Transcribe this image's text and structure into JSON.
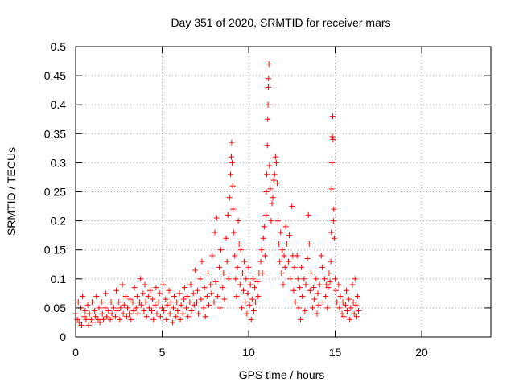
{
  "chart_data": {
    "type": "scatter",
    "title": "Day 351 of 2020, SRMTID for receiver mars",
    "xlabel": "GPS time / hours",
    "ylabel": "SRMTID / TECUs",
    "xlim": [
      0,
      24
    ],
    "ylim": [
      0,
      0.5
    ],
    "xticks": [
      0,
      5,
      10,
      15,
      20
    ],
    "xtick_labels": [
      "0",
      "5",
      "10",
      "15",
      "20"
    ],
    "yticks": [
      0,
      0.05,
      0.1,
      0.15,
      0.2,
      0.25,
      0.3,
      0.35,
      0.4,
      0.45,
      0.5
    ],
    "ytick_labels": [
      "0",
      "0.05",
      "0.1",
      "0.15",
      "0.2",
      "0.25",
      "0.3",
      "0.35",
      "0.4",
      "0.45",
      "0.5"
    ],
    "grid": true,
    "marker": "+",
    "color": "#ff0000",
    "series": [
      {
        "name": "SRMTID",
        "points": [
          [
            0.0,
            0.04
          ],
          [
            0.1,
            0.03
          ],
          [
            0.15,
            0.06
          ],
          [
            0.2,
            0.025
          ],
          [
            0.3,
            0.05
          ],
          [
            0.35,
            0.02
          ],
          [
            0.4,
            0.07
          ],
          [
            0.5,
            0.035
          ],
          [
            0.55,
            0.045
          ],
          [
            0.6,
            0.03
          ],
          [
            0.7,
            0.055
          ],
          [
            0.75,
            0.02
          ],
          [
            0.8,
            0.04
          ],
          [
            0.9,
            0.03
          ],
          [
            0.95,
            0.06
          ],
          [
            1.0,
            0.025
          ],
          [
            1.1,
            0.045
          ],
          [
            1.15,
            0.035
          ],
          [
            1.2,
            0.07
          ],
          [
            1.3,
            0.03
          ],
          [
            1.35,
            0.05
          ],
          [
            1.4,
            0.025
          ],
          [
            1.5,
            0.06
          ],
          [
            1.55,
            0.04
          ],
          [
            1.6,
            0.03
          ],
          [
            1.7,
            0.05
          ],
          [
            1.75,
            0.075
          ],
          [
            1.8,
            0.035
          ],
          [
            1.9,
            0.045
          ],
          [
            2.0,
            0.03
          ],
          [
            2.05,
            0.06
          ],
          [
            2.1,
            0.04
          ],
          [
            2.2,
            0.05
          ],
          [
            2.3,
            0.035
          ],
          [
            2.35,
            0.08
          ],
          [
            2.4,
            0.045
          ],
          [
            2.5,
            0.06
          ],
          [
            2.55,
            0.03
          ],
          [
            2.6,
            0.05
          ],
          [
            2.7,
            0.09
          ],
          [
            2.75,
            0.04
          ],
          [
            2.8,
            0.055
          ],
          [
            2.9,
            0.07
          ],
          [
            2.95,
            0.035
          ],
          [
            3.0,
            0.05
          ],
          [
            3.1,
            0.04
          ],
          [
            3.15,
            0.065
          ],
          [
            3.2,
            0.03
          ],
          [
            3.3,
            0.06
          ],
          [
            3.35,
            0.045
          ],
          [
            3.4,
            0.085
          ],
          [
            3.5,
            0.05
          ],
          [
            3.55,
            0.07
          ],
          [
            3.6,
            0.04
          ],
          [
            3.7,
            0.06
          ],
          [
            3.75,
            0.1
          ],
          [
            3.8,
            0.055
          ],
          [
            3.9,
            0.075
          ],
          [
            3.95,
            0.045
          ],
          [
            4.0,
            0.09
          ],
          [
            4.05,
            0.06
          ],
          [
            4.1,
            0.035
          ],
          [
            4.2,
            0.07
          ],
          [
            4.25,
            0.05
          ],
          [
            4.3,
            0.08
          ],
          [
            4.4,
            0.045
          ],
          [
            4.45,
            0.065
          ],
          [
            4.5,
            0.03
          ],
          [
            4.6,
            0.055
          ],
          [
            4.65,
            0.085
          ],
          [
            4.7,
            0.04
          ],
          [
            4.8,
            0.06
          ],
          [
            4.85,
            0.075
          ],
          [
            4.9,
            0.035
          ],
          [
            5.0,
            0.05
          ],
          [
            5.05,
            0.09
          ],
          [
            5.1,
            0.045
          ],
          [
            5.2,
            0.065
          ],
          [
            5.25,
            0.03
          ],
          [
            5.3,
            0.055
          ],
          [
            5.4,
            0.08
          ],
          [
            5.45,
            0.04
          ],
          [
            5.5,
            0.06
          ],
          [
            5.6,
            0.025
          ],
          [
            5.65,
            0.05
          ],
          [
            5.7,
            0.07
          ],
          [
            5.8,
            0.035
          ],
          [
            5.85,
            0.06
          ],
          [
            5.9,
            0.045
          ],
          [
            6.0,
            0.075
          ],
          [
            6.05,
            0.03
          ],
          [
            6.1,
            0.055
          ],
          [
            6.2,
            0.04
          ],
          [
            6.25,
            0.065
          ],
          [
            6.3,
            0.085
          ],
          [
            6.4,
            0.05
          ],
          [
            6.45,
            0.07
          ],
          [
            6.5,
            0.035
          ],
          [
            6.6,
            0.06
          ],
          [
            6.65,
            0.09
          ],
          [
            6.7,
            0.045
          ],
          [
            6.8,
            0.075
          ],
          [
            6.85,
            0.055
          ],
          [
            6.9,
            0.115
          ],
          [
            7.0,
            0.06
          ],
          [
            7.05,
            0.08
          ],
          [
            7.1,
            0.04
          ],
          [
            7.2,
            0.1
          ],
          [
            7.25,
            0.065
          ],
          [
            7.3,
            0.13
          ],
          [
            7.4,
            0.05
          ],
          [
            7.45,
            0.085
          ],
          [
            7.5,
            0.035
          ],
          [
            7.6,
            0.07
          ],
          [
            7.65,
            0.11
          ],
          [
            7.7,
            0.055
          ],
          [
            7.8,
            0.09
          ],
          [
            7.85,
            0.075
          ],
          [
            7.9,
            0.14
          ],
          [
            8.0,
            0.06
          ],
          [
            8.05,
            0.18
          ],
          [
            8.1,
            0.095
          ],
          [
            8.15,
            0.205
          ],
          [
            8.2,
            0.07
          ],
          [
            8.3,
            0.12
          ],
          [
            8.35,
            0.05
          ],
          [
            8.4,
            0.15
          ],
          [
            8.5,
            0.085
          ],
          [
            8.55,
            0.11
          ],
          [
            8.6,
            0.065
          ],
          [
            8.7,
            0.17
          ],
          [
            8.75,
            0.13
          ],
          [
            8.8,
            0.21
          ],
          [
            8.85,
            0.1
          ],
          [
            8.9,
            0.24
          ],
          [
            8.95,
            0.28
          ],
          [
            9.0,
            0.31
          ],
          [
            9.02,
            0.335
          ],
          [
            9.05,
            0.3
          ],
          [
            9.08,
            0.26
          ],
          [
            9.1,
            0.22
          ],
          [
            9.15,
            0.18
          ],
          [
            9.2,
            0.14
          ],
          [
            9.25,
            0.1
          ],
          [
            9.3,
            0.07
          ],
          [
            9.35,
            0.12
          ],
          [
            9.4,
            0.2
          ],
          [
            9.45,
            0.16
          ],
          [
            9.5,
            0.09
          ],
          [
            9.55,
            0.15
          ],
          [
            9.6,
            0.05
          ],
          [
            9.65,
            0.11
          ],
          [
            9.7,
            0.08
          ],
          [
            9.75,
            0.13
          ],
          [
            9.8,
            0.06
          ],
          [
            9.85,
            0.1
          ],
          [
            9.9,
            0.04
          ],
          [
            9.95,
            0.075
          ],
          [
            10.0,
            0.12
          ],
          [
            10.05,
            0.055
          ],
          [
            10.1,
            0.09
          ],
          [
            10.15,
            0.03
          ],
          [
            10.2,
            0.065
          ],
          [
            10.25,
            0.1
          ],
          [
            10.3,
            0.045
          ],
          [
            10.35,
            0.085
          ],
          [
            10.4,
            0.06
          ],
          [
            10.5,
            0.095
          ],
          [
            10.55,
            0.07
          ],
          [
            10.6,
            0.11
          ],
          [
            10.7,
            0.13
          ],
          [
            10.75,
            0.15
          ],
          [
            10.8,
            0.11
          ],
          [
            10.85,
            0.17
          ],
          [
            10.9,
            0.19
          ],
          [
            10.95,
            0.14
          ],
          [
            11.0,
            0.21
          ],
          [
            11.02,
            0.25
          ],
          [
            11.05,
            0.28
          ],
          [
            11.08,
            0.33
          ],
          [
            11.1,
            0.375
          ],
          [
            11.12,
            0.4
          ],
          [
            11.14,
            0.43
          ],
          [
            11.15,
            0.445
          ],
          [
            11.17,
            0.47
          ],
          [
            11.2,
            0.295
          ],
          [
            11.25,
            0.255
          ],
          [
            11.3,
            0.2
          ],
          [
            11.35,
            0.23
          ],
          [
            11.4,
            0.24
          ],
          [
            11.45,
            0.27
          ],
          [
            11.5,
            0.28
          ],
          [
            11.55,
            0.31
          ],
          [
            11.6,
            0.3
          ],
          [
            11.65,
            0.265
          ],
          [
            11.7,
            0.2
          ],
          [
            11.75,
            0.16
          ],
          [
            11.8,
            0.13
          ],
          [
            11.85,
            0.18
          ],
          [
            11.9,
            0.11
          ],
          [
            11.95,
            0.15
          ],
          [
            12.0,
            0.09
          ],
          [
            12.05,
            0.14
          ],
          [
            12.1,
            0.12
          ],
          [
            12.15,
            0.19
          ],
          [
            12.2,
            0.16
          ],
          [
            12.3,
            0.13
          ],
          [
            12.35,
            0.175
          ],
          [
            12.4,
            0.1
          ],
          [
            12.5,
            0.225
          ],
          [
            12.55,
            0.14
          ],
          [
            12.6,
            0.08
          ],
          [
            12.65,
            0.12
          ],
          [
            12.7,
            0.06
          ],
          [
            12.8,
            0.14
          ],
          [
            12.85,
            0.1
          ],
          [
            12.9,
            0.05
          ],
          [
            12.95,
            0.085
          ],
          [
            13.0,
            0.03
          ],
          [
            13.05,
            0.12
          ],
          [
            13.1,
            0.07
          ],
          [
            13.2,
            0.1
          ],
          [
            13.25,
            0.045
          ],
          [
            13.3,
            0.09
          ],
          [
            13.4,
            0.135
          ],
          [
            13.45,
            0.21
          ],
          [
            13.5,
            0.16
          ],
          [
            13.55,
            0.08
          ],
          [
            13.6,
            0.11
          ],
          [
            13.7,
            0.05
          ],
          [
            13.75,
            0.085
          ],
          [
            13.8,
            0.065
          ],
          [
            13.9,
            0.1
          ],
          [
            13.95,
            0.04
          ],
          [
            14.0,
            0.075
          ],
          [
            14.05,
            0.055
          ],
          [
            14.1,
            0.09
          ],
          [
            14.2,
            0.14
          ],
          [
            14.25,
            0.12
          ],
          [
            14.3,
            0.06
          ],
          [
            14.4,
            0.1
          ],
          [
            14.45,
            0.07
          ],
          [
            14.5,
            0.09
          ],
          [
            14.55,
            0.05
          ],
          [
            14.6,
            0.085
          ],
          [
            14.65,
            0.11
          ],
          [
            14.7,
            0.095
          ],
          [
            14.75,
            0.13
          ],
          [
            14.78,
            0.18
          ],
          [
            14.8,
            0.255
          ],
          [
            14.82,
            0.3
          ],
          [
            14.84,
            0.345
          ],
          [
            14.86,
            0.38
          ],
          [
            14.88,
            0.34
          ],
          [
            14.9,
            0.2
          ],
          [
            14.92,
            0.22
          ],
          [
            14.95,
            0.17
          ],
          [
            15.0,
            0.1
          ],
          [
            15.05,
            0.08
          ],
          [
            15.1,
            0.06
          ],
          [
            15.2,
            0.09
          ],
          [
            15.25,
            0.05
          ],
          [
            15.3,
            0.07
          ],
          [
            15.4,
            0.04
          ],
          [
            15.45,
            0.06
          ],
          [
            15.5,
            0.035
          ],
          [
            15.6,
            0.055
          ],
          [
            15.65,
            0.08
          ],
          [
            15.7,
            0.045
          ],
          [
            15.8,
            0.065
          ],
          [
            15.85,
            0.03
          ],
          [
            15.9,
            0.05
          ],
          [
            16.0,
            0.09
          ],
          [
            16.05,
            0.06
          ],
          [
            16.1,
            0.04
          ],
          [
            16.15,
            0.1
          ],
          [
            16.2,
            0.055
          ],
          [
            16.25,
            0.035
          ],
          [
            16.3,
            0.07
          ],
          [
            16.35,
            0.045
          ]
        ]
      }
    ]
  }
}
